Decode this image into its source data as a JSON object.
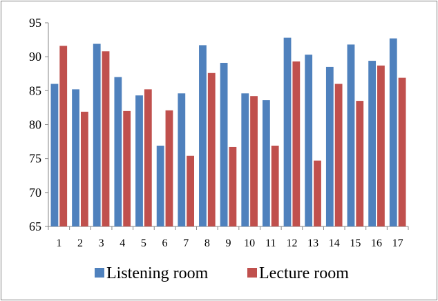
{
  "chart_data": {
    "type": "bar",
    "categories": [
      "1",
      "2",
      "3",
      "4",
      "5",
      "6",
      "7",
      "8",
      "9",
      "10",
      "11",
      "12",
      "13",
      "14",
      "15",
      "16",
      "17"
    ],
    "series": [
      {
        "name": "Listening room",
        "color": "#4F81BD",
        "values": [
          86.0,
          85.2,
          91.9,
          87.0,
          84.3,
          76.9,
          84.6,
          91.7,
          89.1,
          84.6,
          83.6,
          92.8,
          90.3,
          88.5,
          91.8,
          89.4,
          92.7
        ]
      },
      {
        "name": "Lecture room",
        "color": "#C0504D",
        "values": [
          91.6,
          81.9,
          90.8,
          82.0,
          85.2,
          82.1,
          75.4,
          87.6,
          76.7,
          84.2,
          76.9,
          89.3,
          74.7,
          86.0,
          83.5,
          88.7,
          86.9
        ]
      }
    ],
    "y_ticks": [
      "65",
      "70",
      "75",
      "80",
      "85",
      "90",
      "95"
    ],
    "ylim": [
      65,
      95
    ],
    "title": "",
    "xlabel": "",
    "ylabel": "",
    "grid": false,
    "legend_position": "bottom"
  }
}
